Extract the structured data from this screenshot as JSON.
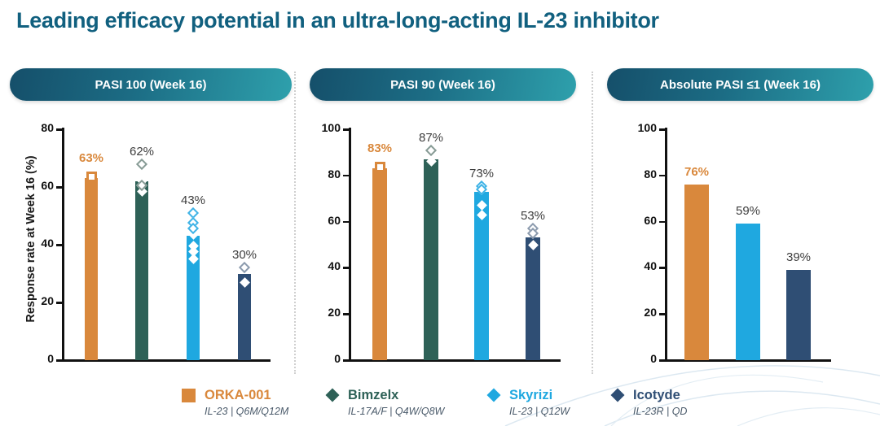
{
  "title": "Leading efficacy potential in an ultra-long-acting IL-23 inhibitor",
  "series_colors": {
    "orange": {
      "fill": "#D9883C",
      "open_stroke": "#D9883C"
    },
    "teal": {
      "fill": "#2E6157",
      "open_stroke": "#879B95"
    },
    "blue": {
      "fill": "#1FA8E0",
      "open_stroke": "#3FB3E6"
    },
    "navy": {
      "fill": "#2F4E74",
      "open_stroke": "#8C9BAE"
    }
  },
  "ui_colors": {
    "title_text": "#11607F",
    "pill_gradient_left": "#154F6A",
    "pill_gradient_right": "#2EA0AC",
    "axis": "#111111",
    "value_label": "#3d3d3d"
  },
  "legend": [
    {
      "name": "ORKA-001",
      "sub": "IL-23  |  Q6M/Q12M",
      "marker": "square",
      "color_key": "orange"
    },
    {
      "name": "Bimzelx",
      "sub": "IL-17A/F  |  Q4W/Q8W",
      "marker": "diamond",
      "color_key": "teal"
    },
    {
      "name": "Skyrizi",
      "sub": "IL-23  |  Q12W",
      "marker": "diamond",
      "color_key": "blue"
    },
    {
      "name": "Icotyde",
      "sub": "IL-23R  |  QD",
      "marker": "diamond",
      "color_key": "navy"
    }
  ],
  "chart_data": [
    {
      "type": "bar",
      "title": "PASI 100 (Week 16)",
      "ylabel": "Response rate at Week 16 (%)",
      "ylim": [
        0,
        80
      ],
      "yticks": [
        0,
        20,
        40,
        60,
        80
      ],
      "grid": false,
      "categories": [
        "ORKA-001",
        "Bimzelx",
        "Skyrizi",
        "Icotyde"
      ],
      "bars": [
        {
          "name": "ORKA-001",
          "value": 63,
          "label": "63%",
          "color_key": "orange",
          "marker": "square",
          "open_points": [
            63.5
          ],
          "filled_points": []
        },
        {
          "name": "Bimzelx",
          "value": 62,
          "label": "62%",
          "color_key": "teal",
          "marker": "diamond",
          "open_points": [
            68,
            60.5
          ],
          "filled_points": [
            62,
            58.5
          ]
        },
        {
          "name": "Skyrizi",
          "value": 43,
          "label": "43%",
          "color_key": "blue",
          "marker": "diamond",
          "open_points": [
            51,
            47.5,
            45.5
          ],
          "filled_points": [
            43.5,
            39.5,
            37.5,
            35
          ]
        },
        {
          "name": "Icotyde",
          "value": 30,
          "label": "30%",
          "color_key": "navy",
          "marker": "diamond",
          "open_points": [
            32
          ],
          "filled_points": [
            27
          ]
        }
      ]
    },
    {
      "type": "bar",
      "title": "PASI 90 (Week 16)",
      "ylabel": "",
      "ylim": [
        0,
        100
      ],
      "yticks": [
        0,
        20,
        40,
        60,
        80,
        100
      ],
      "grid": false,
      "categories": [
        "ORKA-001",
        "Bimzelx",
        "Skyrizi",
        "Icotyde"
      ],
      "bars": [
        {
          "name": "ORKA-001",
          "value": 83,
          "label": "83%",
          "color_key": "orange",
          "marker": "square",
          "open_points": [
            83.5
          ],
          "filled_points": []
        },
        {
          "name": "Bimzelx",
          "value": 87,
          "label": "87%",
          "color_key": "teal",
          "marker": "diamond",
          "open_points": [
            91
          ],
          "filled_points": [
            86
          ]
        },
        {
          "name": "Skyrizi",
          "value": 73,
          "label": "73%",
          "color_key": "blue",
          "marker": "diamond",
          "open_points": [
            75.5,
            74
          ],
          "filled_points": [
            67,
            63
          ]
        },
        {
          "name": "Icotyde",
          "value": 53,
          "label": "53%",
          "color_key": "navy",
          "marker": "diamond",
          "open_points": [
            57,
            55
          ],
          "filled_points": [
            50
          ]
        }
      ]
    },
    {
      "type": "bar",
      "title": "Absolute PASI ≤1 (Week 16)",
      "ylabel": "",
      "ylim": [
        0,
        100
      ],
      "yticks": [
        0,
        20,
        40,
        60,
        80,
        100
      ],
      "grid": false,
      "categories": [
        "ORKA-001",
        "Skyrizi",
        "Icotyde"
      ],
      "bars": [
        {
          "name": "ORKA-001",
          "value": 76,
          "label": "76%",
          "color_key": "orange",
          "marker": "none",
          "open_points": [],
          "filled_points": []
        },
        {
          "name": "Skyrizi",
          "value": 59,
          "label": "59%",
          "color_key": "blue",
          "marker": "none",
          "open_points": [],
          "filled_points": []
        },
        {
          "name": "Icotyde",
          "value": 39,
          "label": "39%",
          "color_key": "navy",
          "marker": "none",
          "open_points": [],
          "filled_points": []
        }
      ]
    }
  ]
}
